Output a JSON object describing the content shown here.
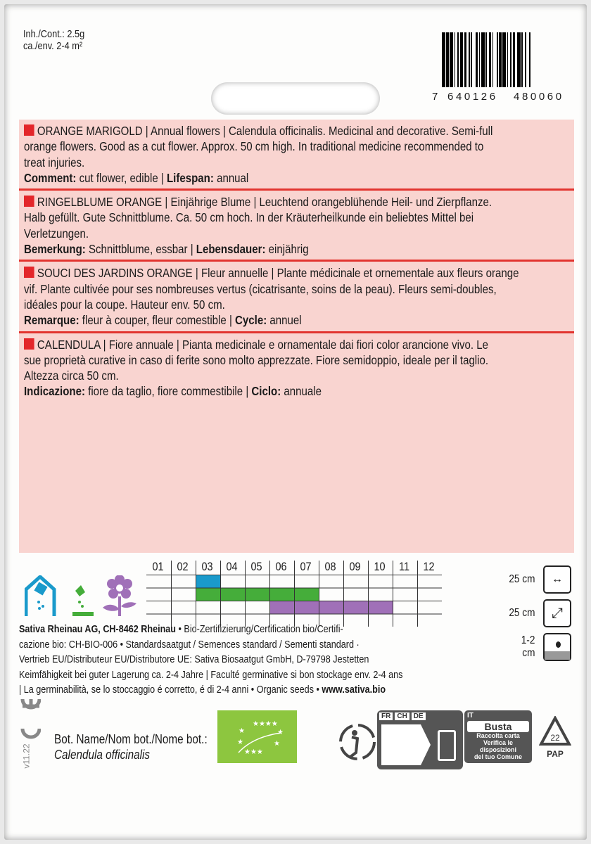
{
  "header": {
    "content": "Inh./Cont.:  2.5g",
    "area": "ca./env. 2-4 m²",
    "barcode": {
      "lead": "7",
      "left": "640126",
      "right": "480060"
    }
  },
  "sections": [
    {
      "lines": [
        "ORANGE MARIGOLD | Annual flowers | Calendula officinalis. Medicinal and decorative. Semi-full",
        "orange flowers. Good as a cut flower. Approx. 50 cm high. In traditional medicine recommended to",
        "treat injuries."
      ],
      "k1": "Comment:",
      "v1": " cut flower, edible | ",
      "k2": "Lifespan:",
      "v2": " annual"
    },
    {
      "lines": [
        "RINGELBLUME ORANGE | Einjährige Blume | Leuchtend orangeblühende Heil- und Zierpflanze.",
        "Halb gefüllt. Gute Schnittblume. Ca. 50 cm hoch. In der Kräuterheilkunde ein beliebtes Mittel bei",
        "Verletzungen."
      ],
      "k1": "Bemerkung:",
      "v1": " Schnittblume, essbar | ",
      "k2": "Lebensdauer:",
      "v2": " einjährig"
    },
    {
      "lines": [
        "SOUCI DES JARDINS ORANGE | Fleur annuelle | Plante médicinale et ornementale aux fleurs orange",
        "vif. Plante cultivée pour ses nombreuses vertus (cicatrisante, soins de la peau). Fleurs semi-doubles,",
        "idéales pour la coupe. Hauteur env. 50 cm."
      ],
      "k1": "Remarque:",
      "v1": " fleur à couper, fleur comestible | ",
      "k2": "Cycle:",
      "v2": " annuel"
    },
    {
      "lines": [
        "CALENDULA | Fiore annuale | Pianta medicinale e ornamentale dai fiori color arancione vivo. Le",
        "sue proprietà curative in caso di ferite sono molto apprezzate. Fiore semidoppio, ideale per il taglio.",
        "Altezza circa 50 cm."
      ],
      "k1": "Indicazione:",
      "v1": " fiore da taglio, fiore commestibile | ",
      "k2": "Ciclo:",
      "v2": " annuale"
    }
  ],
  "calendar": {
    "months": [
      "01",
      "02",
      "03",
      "04",
      "05",
      "06",
      "07",
      "08",
      "09",
      "10",
      "11",
      "12"
    ],
    "rows": [
      {
        "activity": "sowing-indoor",
        "color": "#1a9acb",
        "months": [
          3
        ]
      },
      {
        "activity": "sowing-outdoor",
        "color": "#45ad3a",
        "months": [
          3,
          4,
          5,
          6,
          7
        ]
      },
      {
        "activity": "flowering",
        "color": "#a070b8",
        "months": [
          6,
          7,
          8,
          9,
          10
        ]
      }
    ]
  },
  "spacing": [
    {
      "value": "25 cm",
      "icon": "row-spacing-icon"
    },
    {
      "value": "25 cm",
      "icon": "plant-spacing-icon"
    },
    {
      "value": "1-2 cm",
      "icon": "sowing-depth-icon"
    }
  ],
  "footer": {
    "lines": [
      {
        "b": "Sativa Rheinau AG, CH-8462 Rheinau",
        "t": " • Bio-Zertifizierung/Certification bio/Certifi-"
      },
      {
        "t": "cazione bio: CH-BIO-006 • Standardsaatgut / Semences standard / Sementi standard ·"
      },
      {
        "t": "Vertrieb EU/Distributeur EU/Distributore UE: Sativa Biosaatgut GmbH, D-79798 Jestetten"
      },
      {
        "t": "Keimfähigkeit bei guter Lagerung ca. 2-4 Jahre | Faculté germinative si bon stockage env. 2-4 ans"
      },
      {
        "t": "| La germinabilità, se lo stoccaggio é corretto, é di 2-4 anni • Organic seeds • ",
        "b2": "www.sativa.bio"
      }
    ]
  },
  "bottom": {
    "version": "v11.22",
    "bot_label": "Bot. Name/Nom bot./Nome bot.:",
    "bot_name": "Calendula officinalis",
    "triman": {
      "countries": [
        "FR",
        "CH",
        "DE"
      ]
    },
    "busta": {
      "country": "IT",
      "title": "Busta",
      "l1": "Raccolta carta",
      "l2": "Verifica le disposizioni",
      "l3": "del tuo Comune"
    },
    "pap": {
      "num": "22",
      "label": "PAP"
    }
  }
}
